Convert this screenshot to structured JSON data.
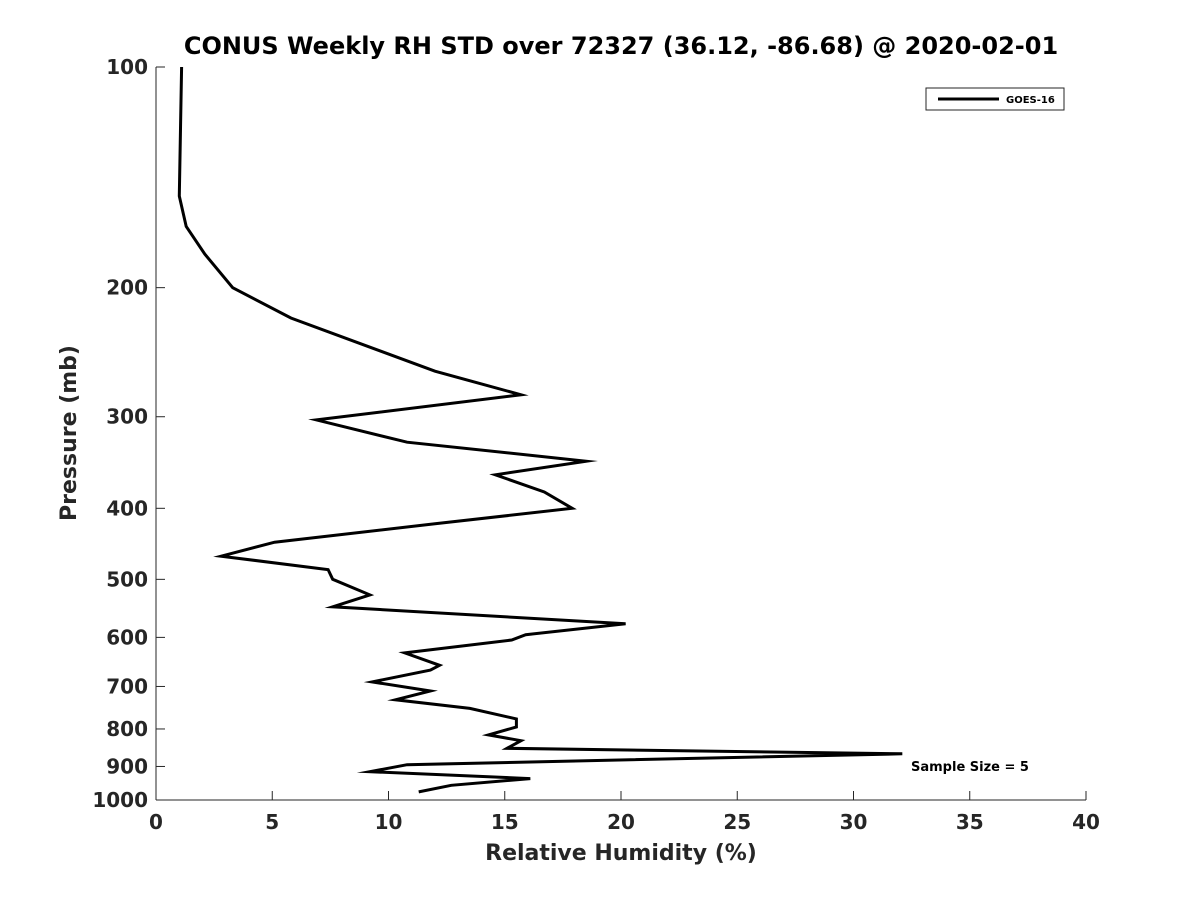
{
  "chart_data": {
    "type": "line",
    "title": "CONUS Weekly RH STD over 72327 (36.12, -86.68) @ 2020-02-01",
    "xlabel": "Relative Humidity (%)",
    "ylabel": "Pressure (mb)",
    "xlim": [
      0,
      40
    ],
    "ylim": [
      100,
      1000
    ],
    "yscale": "log",
    "y_reversed": true,
    "x_ticks": [
      0,
      5,
      10,
      15,
      20,
      25,
      30,
      35,
      40
    ],
    "x_tick_labels": [
      "0",
      "5",
      "10",
      "15",
      "20",
      "25",
      "30",
      "35",
      "40"
    ],
    "y_ticks": [
      100,
      200,
      300,
      400,
      500,
      600,
      700,
      800,
      900,
      1000
    ],
    "y_tick_labels": [
      "100",
      "200",
      "300",
      "400",
      "500",
      "600",
      "700",
      "800",
      "900",
      "1000"
    ],
    "legend": {
      "entries": [
        "GOES-16"
      ],
      "location": "top-right"
    },
    "annotation": "Sample Size = 5",
    "series": [
      {
        "name": "GOES-16",
        "color": "#000000",
        "x": [
          1.1,
          1.0,
          1.3,
          2.1,
          3.3,
          5.8,
          12.0,
          15.7,
          6.9,
          10.8,
          18.5,
          14.6,
          16.7,
          17.9,
          12.0,
          5.1,
          2.8,
          7.4,
          7.6,
          9.2,
          7.6,
          20.2,
          15.9,
          15.3,
          10.7,
          12.2,
          11.8,
          9.3,
          11.8,
          10.3,
          13.5,
          15.5,
          15.5,
          14.3,
          15.7,
          15.1,
          32.1,
          10.8,
          9.2,
          16.1,
          12.7,
          11.3
        ],
        "y": [
          100,
          150,
          165,
          180,
          200,
          220,
          260,
          280,
          303,
          325,
          345,
          360,
          380,
          400,
          420,
          445,
          465,
          485,
          500,
          525,
          545,
          575,
          595,
          605,
          630,
          655,
          665,
          690,
          710,
          730,
          750,
          775,
          795,
          815,
          830,
          850,
          865,
          895,
          915,
          935,
          955,
          975
        ]
      }
    ]
  }
}
